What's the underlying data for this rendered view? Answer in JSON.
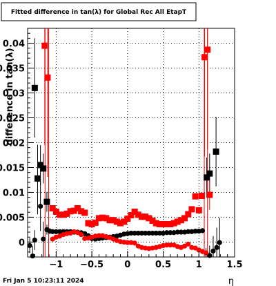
{
  "chart_data": {
    "type": "scatter",
    "title": "Fitted difference in tan(λ) for Global Rec All EtapT",
    "xlabel": "η",
    "ylabel": "difference in tan(λ)",
    "xlim": [
      -1.4,
      1.5
    ],
    "ylim": [
      -0.003,
      0.043
    ],
    "grid": true,
    "x_ticks": [
      {
        "value": -1,
        "label": "−1"
      },
      {
        "value": -0.5,
        "label": "−0.5"
      },
      {
        "value": 0,
        "label": "0"
      },
      {
        "value": 0.5,
        "label": "0.5"
      },
      {
        "value": 1,
        "label": "1"
      },
      {
        "value": 1.5,
        "label": "1.5"
      }
    ],
    "y_ticks": [
      {
        "value": 0,
        "label": "0"
      },
      {
        "value": 0.005,
        "label": "0.005"
      },
      {
        "value": 0.01,
        "label": "0.01"
      },
      {
        "value": 0.015,
        "label": "0.015"
      },
      {
        "value": 0.02,
        "label": "0.02"
      },
      {
        "value": 0.025,
        "label": "0.025"
      },
      {
        "value": 0.03,
        "label": "0.03"
      },
      {
        "value": 0.035,
        "label": "0.035"
      },
      {
        "value": 0.04,
        "label": "0.04"
      }
    ],
    "series": [
      {
        "color": "#000000",
        "marker": "circle",
        "points": [
          {
            "x": -1.37,
            "y": -0.0007,
            "err": 0.0015
          },
          {
            "x": -1.33,
            "y": -0.0028,
            "err": 0.002
          },
          {
            "x": -1.3,
            "y": 0.0004,
            "err": 0.002
          },
          {
            "x": -1.26,
            "y": 0.0126,
            "err": 0.007
          },
          {
            "x": -1.22,
            "y": 0.0072,
            "err": 0.005
          },
          {
            "x": -1.18,
            "y": 0.0006,
            "err": 0.0035
          },
          {
            "x": -1.13,
            "y": 0.0025,
            "err": 0.001
          },
          {
            "x": -1.09,
            "y": 0.0022,
            "err": 0.0006
          },
          {
            "x": -1.05,
            "y": 0.0021,
            "err": 0.0004
          },
          {
            "x": -1.0,
            "y": 0.0021
          },
          {
            "x": -0.95,
            "y": 0.0021
          },
          {
            "x": -0.9,
            "y": 0.0021
          },
          {
            "x": -0.85,
            "y": 0.0021
          },
          {
            "x": -0.8,
            "y": 0.0021
          },
          {
            "x": -0.75,
            "y": 0.002
          },
          {
            "x": -0.7,
            "y": 0.002
          },
          {
            "x": -0.65,
            "y": 0.0019
          },
          {
            "x": -0.6,
            "y": 0.0017
          },
          {
            "x": -0.55,
            "y": 0.0013
          },
          {
            "x": -0.5,
            "y": 0.0007
          },
          {
            "x": -0.45,
            "y": 0.0006
          },
          {
            "x": -0.4,
            "y": 0.0007
          },
          {
            "x": -0.35,
            "y": 0.0008
          },
          {
            "x": -0.3,
            "y": 0.0009
          },
          {
            "x": -0.25,
            "y": 0.001
          },
          {
            "x": -0.2,
            "y": 0.0011
          },
          {
            "x": -0.15,
            "y": 0.0012
          },
          {
            "x": -0.1,
            "y": 0.0014
          },
          {
            "x": -0.05,
            "y": 0.0016
          },
          {
            "x": 0.0,
            "y": 0.0017
          },
          {
            "x": 0.05,
            "y": 0.0018
          },
          {
            "x": 0.1,
            "y": 0.0018
          },
          {
            "x": 0.15,
            "y": 0.0018
          },
          {
            "x": 0.2,
            "y": 0.0018
          },
          {
            "x": 0.25,
            "y": 0.0018
          },
          {
            "x": 0.3,
            "y": 0.0018
          },
          {
            "x": 0.35,
            "y": 0.0018
          },
          {
            "x": 0.4,
            "y": 0.0018
          },
          {
            "x": 0.45,
            "y": 0.0018
          },
          {
            "x": 0.5,
            "y": 0.0018
          },
          {
            "x": 0.55,
            "y": 0.0019
          },
          {
            "x": 0.6,
            "y": 0.0019
          },
          {
            "x": 0.65,
            "y": 0.0019
          },
          {
            "x": 0.7,
            "y": 0.002
          },
          {
            "x": 0.75,
            "y": 0.002
          },
          {
            "x": 0.8,
            "y": 0.002
          },
          {
            "x": 0.85,
            "y": 0.0021
          },
          {
            "x": 0.9,
            "y": 0.0021
          },
          {
            "x": 0.95,
            "y": 0.0022
          },
          {
            "x": 1.0,
            "y": 0.0022
          },
          {
            "x": 1.05,
            "y": 0.0023,
            "err": 0.0004
          },
          {
            "x": 1.1,
            "y": -0.0022,
            "err": 0.001
          },
          {
            "x": 1.15,
            "y": -0.0027,
            "err": 0.002
          },
          {
            "x": 1.2,
            "y": -0.0018,
            "err": 0.003
          },
          {
            "x": 1.25,
            "y": -0.0011,
            "err": 0.004
          },
          {
            "x": 1.29,
            "y": -0.0001,
            "err": 0.005
          }
        ]
      },
      {
        "color": "#000000",
        "marker": "square",
        "points": [
          {
            "x": -1.3,
            "y": 0.031,
            "err": 0.01
          },
          {
            "x": -1.26,
            "y": 0.0128,
            "err": 0.004
          },
          {
            "x": -1.22,
            "y": 0.0155,
            "err": 0.004
          },
          {
            "x": -1.18,
            "y": 0.0148,
            "err": 0.003
          },
          {
            "x": -1.13,
            "y": 0.0081,
            "err": 0.002
          },
          {
            "x": 1.11,
            "y": 0.013,
            "err": 0.004
          },
          {
            "x": 1.15,
            "y": 0.0138,
            "err": 0.004
          },
          {
            "x": 1.24,
            "y": 0.0182,
            "err": 0.007
          }
        ]
      },
      {
        "color": "#ff0000",
        "marker": "square",
        "points": [
          {
            "x": -1.16,
            "y": 0.0395,
            "err": 0.02
          },
          {
            "x": -1.12,
            "y": 0.0331,
            "err": 0.02
          },
          {
            "x": -1.05,
            "y": 0.0068
          },
          {
            "x": -1.0,
            "y": 0.0061
          },
          {
            "x": -0.95,
            "y": 0.0055
          },
          {
            "x": -0.9,
            "y": 0.0055
          },
          {
            "x": -0.85,
            "y": 0.0057
          },
          {
            "x": -0.8,
            "y": 0.0062
          },
          {
            "x": -0.75,
            "y": 0.0063
          },
          {
            "x": -0.7,
            "y": 0.0068
          },
          {
            "x": -0.65,
            "y": 0.0062
          },
          {
            "x": -0.6,
            "y": 0.0059
          },
          {
            "x": -0.55,
            "y": 0.0038
          },
          {
            "x": -0.5,
            "y": 0.0036
          },
          {
            "x": -0.45,
            "y": 0.0039
          },
          {
            "x": -0.4,
            "y": 0.0048
          },
          {
            "x": -0.35,
            "y": 0.0049
          },
          {
            "x": -0.3,
            "y": 0.0048
          },
          {
            "x": -0.25,
            "y": 0.0044
          },
          {
            "x": -0.2,
            "y": 0.0044
          },
          {
            "x": -0.15,
            "y": 0.0041
          },
          {
            "x": -0.1,
            "y": 0.0038
          },
          {
            "x": -0.05,
            "y": 0.0041
          },
          {
            "x": 0.0,
            "y": 0.0047
          },
          {
            "x": 0.05,
            "y": 0.0054
          },
          {
            "x": 0.1,
            "y": 0.0061
          },
          {
            "x": 0.15,
            "y": 0.0055
          },
          {
            "x": 0.2,
            "y": 0.0051
          },
          {
            "x": 0.25,
            "y": 0.0051
          },
          {
            "x": 0.3,
            "y": 0.0048
          },
          {
            "x": 0.35,
            "y": 0.0043
          },
          {
            "x": 0.4,
            "y": 0.0038
          },
          {
            "x": 0.45,
            "y": 0.0036
          },
          {
            "x": 0.5,
            "y": 0.0036
          },
          {
            "x": 0.55,
            "y": 0.0036
          },
          {
            "x": 0.6,
            "y": 0.0036
          },
          {
            "x": 0.65,
            "y": 0.0038
          },
          {
            "x": 0.7,
            "y": 0.0041
          },
          {
            "x": 0.75,
            "y": 0.0044
          },
          {
            "x": 0.8,
            "y": 0.0048
          },
          {
            "x": 0.85,
            "y": 0.0056
          },
          {
            "x": 0.9,
            "y": 0.0066
          },
          {
            "x": 0.95,
            "y": 0.0092
          },
          {
            "x": 1.0,
            "y": 0.0064
          },
          {
            "x": 1.04,
            "y": 0.0093
          },
          {
            "x": 1.08,
            "y": 0.0372,
            "err": 0.02
          },
          {
            "x": 1.12,
            "y": 0.0387,
            "err": 0.02
          },
          {
            "x": 1.15,
            "y": 0.0095,
            "err": 0.003
          }
        ]
      },
      {
        "color": "#ff0000",
        "marker": "circle",
        "points": [
          {
            "x": -1.05,
            "y": 0.0006
          },
          {
            "x": -1.0,
            "y": 0.001
          },
          {
            "x": -0.95,
            "y": 0.0012
          },
          {
            "x": -0.9,
            "y": 0.0015
          },
          {
            "x": -0.85,
            "y": 0.0017
          },
          {
            "x": -0.8,
            "y": 0.0018
          },
          {
            "x": -0.75,
            "y": 0.0021
          },
          {
            "x": -0.7,
            "y": 0.0019
          },
          {
            "x": -0.65,
            "y": 0.0015
          },
          {
            "x": -0.6,
            "y": 0.0007
          },
          {
            "x": -0.55,
            "y": 0.0008
          },
          {
            "x": -0.5,
            "y": 0.001
          },
          {
            "x": -0.45,
            "y": 0.0012
          },
          {
            "x": -0.4,
            "y": 0.0013
          },
          {
            "x": -0.35,
            "y": 0.0013
          },
          {
            "x": -0.3,
            "y": 0.0011
          },
          {
            "x": -0.25,
            "y": 0.0009
          },
          {
            "x": -0.2,
            "y": 0.0006
          },
          {
            "x": -0.15,
            "y": 0.0003
          },
          {
            "x": -0.1,
            "y": 0.0001
          },
          {
            "x": -0.05,
            "y": 0.0
          },
          {
            "x": 0.0,
            "y": -0.0001
          },
          {
            "x": 0.05,
            "y": -0.0001
          },
          {
            "x": 0.1,
            "y": -0.0002
          },
          {
            "x": 0.15,
            "y": -0.0008
          },
          {
            "x": 0.2,
            "y": -0.0011
          },
          {
            "x": 0.25,
            "y": -0.0012
          },
          {
            "x": 0.3,
            "y": -0.0013
          },
          {
            "x": 0.35,
            "y": -0.0012
          },
          {
            "x": 0.4,
            "y": -0.0011
          },
          {
            "x": 0.45,
            "y": -0.0009
          },
          {
            "x": 0.5,
            "y": -0.0007
          },
          {
            "x": 0.55,
            "y": -0.0006
          },
          {
            "x": 0.6,
            "y": -0.0006
          },
          {
            "x": 0.65,
            "y": -0.0006
          },
          {
            "x": 0.7,
            "y": -0.0009
          },
          {
            "x": 0.75,
            "y": -0.0011
          },
          {
            "x": 0.8,
            "y": -0.0008
          },
          {
            "x": 0.85,
            "y": -0.0004
          },
          {
            "x": 0.9,
            "y": -0.0011
          },
          {
            "x": 0.95,
            "y": -0.0012
          },
          {
            "x": 1.0,
            "y": -0.0016
          },
          {
            "x": 1.05,
            "y": -0.0019
          },
          {
            "x": 1.1,
            "y": -0.0022
          }
        ]
      }
    ],
    "vertical_lines": [
      {
        "x": -1.155,
        "color": "#ff0000"
      },
      {
        "x": -1.105,
        "color": "#ff0000"
      },
      {
        "x": 1.075,
        "color": "#ff0000"
      },
      {
        "x": 1.12,
        "color": "#ff0000"
      }
    ]
  },
  "footer": {
    "date": "Fri Jan  5 10:23:11 2024"
  }
}
